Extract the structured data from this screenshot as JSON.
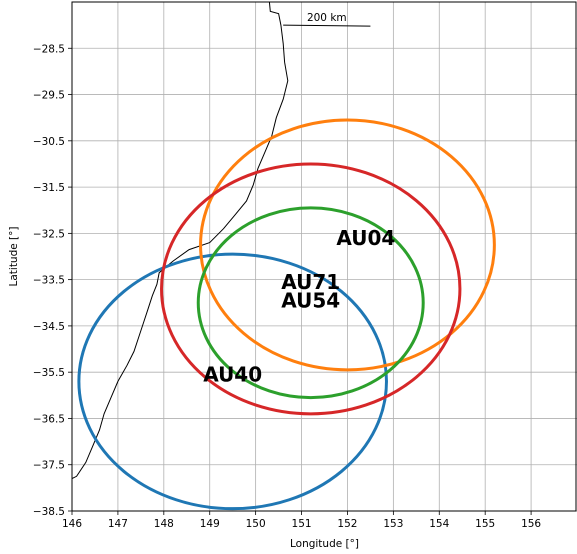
{
  "chart_data": {
    "type": "map",
    "xlabel": "Longitude [°]",
    "ylabel": "Latitude [°]",
    "xlim": [
      146,
      157
    ],
    "ylim": [
      -38.5,
      -27.5
    ],
    "xticks": [
      146,
      147,
      148,
      149,
      150,
      151,
      152,
      153,
      154,
      155,
      156
    ],
    "xtick_labels": [
      "146",
      "147",
      "148",
      "149",
      "150",
      "151",
      "152",
      "153",
      "154",
      "155",
      "156"
    ],
    "yticks": [
      -28.5,
      -29.5,
      -30.5,
      -31.5,
      -32.5,
      -33.5,
      -34.5,
      -35.5,
      -36.5,
      -37.5,
      -38.5
    ],
    "ytick_labels": [
      "−28.5",
      "−29.5",
      "−30.5",
      "−31.5",
      "−32.5",
      "−33.5",
      "−34.5",
      "−35.5",
      "−36.5",
      "−37.5",
      "−38.5"
    ],
    "grid": true,
    "scale_bar": {
      "label": "200 km",
      "from_lon": 150.6,
      "to_lon": 152.5,
      "lat": -28.0
    },
    "sites": [
      {
        "label": "AU40",
        "label_lon": 149.5,
        "label_lat": -35.55,
        "center_lon": 149.5,
        "center_lat": -35.7,
        "radius_lon": 3.35,
        "radius_lat": 2.75,
        "color": "#1f77b4"
      },
      {
        "label": "AU04",
        "label_lon": 152.4,
        "label_lat": -32.6,
        "center_lon": 152.0,
        "center_lat": -32.75,
        "radius_lon": 3.2,
        "radius_lat": 2.7,
        "color": "#ff7f0e"
      },
      {
        "label": "AU71",
        "label_lon": 151.2,
        "label_lat": -33.55,
        "center_lon": 151.2,
        "center_lat": -33.7,
        "radius_lon": 3.25,
        "radius_lat": 2.7,
        "color": "#d62728"
      },
      {
        "label": "AU54",
        "label_lon": 151.2,
        "label_lat": -33.95,
        "center_lon": 151.2,
        "center_lat": -34.0,
        "radius_lon": 2.45,
        "radius_lat": 2.05,
        "color": "#2ca02c"
      }
    ],
    "coastline": [
      [
        150.3,
        -27.5
      ],
      [
        150.32,
        -27.7
      ],
      [
        150.5,
        -27.75
      ],
      [
        150.55,
        -28.0
      ],
      [
        150.6,
        -28.4
      ],
      [
        150.63,
        -28.8
      ],
      [
        150.7,
        -29.2
      ],
      [
        150.6,
        -29.6
      ],
      [
        150.45,
        -30.0
      ],
      [
        150.35,
        -30.4
      ],
      [
        150.2,
        -30.75
      ],
      [
        150.05,
        -31.1
      ],
      [
        149.95,
        -31.45
      ],
      [
        149.8,
        -31.8
      ],
      [
        149.55,
        -32.1
      ],
      [
        149.3,
        -32.4
      ],
      [
        149.0,
        -32.7
      ],
      [
        148.55,
        -32.85
      ],
      [
        148.2,
        -33.1
      ],
      [
        147.9,
        -33.35
      ],
      [
        147.85,
        -33.6
      ],
      [
        147.75,
        -33.85
      ],
      [
        147.65,
        -34.15
      ],
      [
        147.55,
        -34.45
      ],
      [
        147.45,
        -34.75
      ],
      [
        147.35,
        -35.05
      ],
      [
        147.2,
        -35.35
      ],
      [
        147.0,
        -35.7
      ],
      [
        146.85,
        -36.05
      ],
      [
        146.7,
        -36.4
      ],
      [
        146.6,
        -36.75
      ],
      [
        146.45,
        -37.1
      ],
      [
        146.3,
        -37.45
      ],
      [
        146.1,
        -37.75
      ],
      [
        145.9,
        -37.85
      ],
      [
        145.3,
        -37.85
      ],
      [
        144.6,
        -37.9
      ],
      [
        143.9,
        -38.1
      ],
      [
        143.4,
        -38.4
      ],
      [
        143.0,
        -38.5
      ]
    ]
  }
}
